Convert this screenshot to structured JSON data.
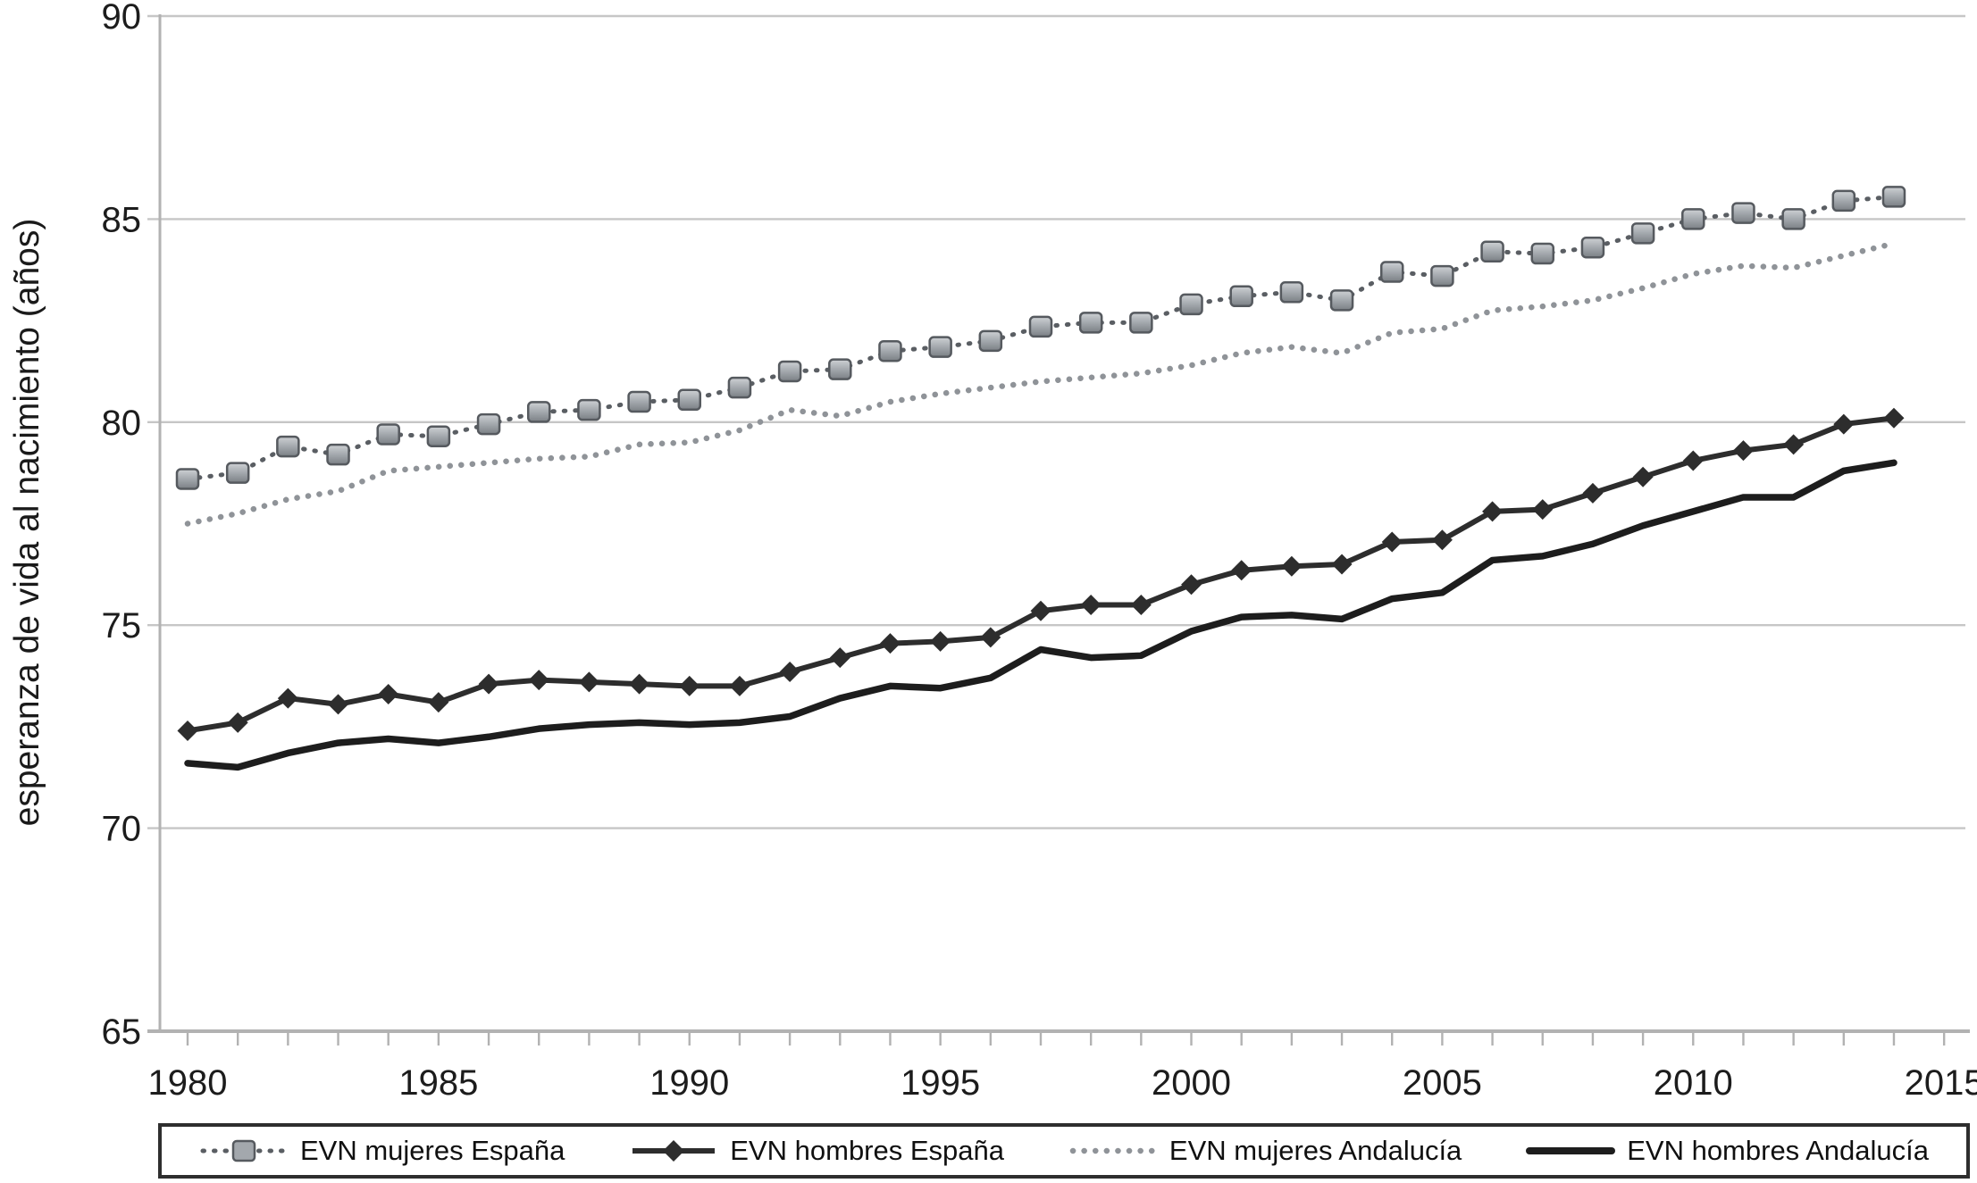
{
  "y_axis": {
    "title": "esperanza de vida al nacimiento (años)",
    "tick_labels": [
      "90",
      "85",
      "80",
      "75",
      "70",
      "65"
    ],
    "ticks": [
      90,
      85,
      80,
      75,
      70,
      65
    ]
  },
  "x_axis": {
    "tick_labels": [
      "1980",
      "1985",
      "1990",
      "1995",
      "2000",
      "2005",
      "2010",
      "2015"
    ],
    "ticks": [
      1980,
      1985,
      1990,
      1995,
      2000,
      2005,
      2010,
      2015
    ]
  },
  "colors": {
    "grid": "#c6c6c6",
    "axis": "#b2b2b2",
    "square_marker_fill": "#a3a8ad",
    "square_marker_border": "#565a5f",
    "squares_connector": "#5a5e63",
    "hombres_espana_line": "#2d2d2d",
    "mujeres_andalucia_dots": "#8f9398",
    "hombres_andalucia_line": "#1d1d1d",
    "label_text": "#1c1c1c",
    "legend_border": "#2e2e2e"
  },
  "chart_data": {
    "type": "line",
    "title": "",
    "xlabel": "",
    "ylabel": "esperanza de vida al nacimiento (años)",
    "ylim": [
      65,
      90
    ],
    "xlim": [
      1979.3,
      2015.7
    ],
    "grid": true,
    "legend_position": "bottom",
    "x": [
      1980,
      1981,
      1982,
      1983,
      1984,
      1985,
      1986,
      1987,
      1988,
      1989,
      1990,
      1991,
      1992,
      1993,
      1994,
      1995,
      1996,
      1997,
      1998,
      1999,
      2000,
      2001,
      2002,
      2003,
      2004,
      2005,
      2006,
      2007,
      2008,
      2009,
      2010,
      2011,
      2012,
      2013,
      2014
    ],
    "series": [
      {
        "name": "EVN mujeres España",
        "marker": "square",
        "line_style": "dotted",
        "values": [
          78.6,
          78.75,
          79.4,
          79.2,
          79.7,
          79.65,
          79.95,
          80.25,
          80.3,
          80.5,
          80.55,
          80.85,
          81.25,
          81.3,
          81.75,
          81.85,
          82.0,
          82.35,
          82.45,
          82.45,
          82.9,
          83.1,
          83.2,
          83.0,
          83.7,
          83.6,
          84.2,
          84.15,
          84.3,
          84.65,
          85.0,
          85.15,
          85.0,
          85.45,
          85.55
        ]
      },
      {
        "name": "EVN hombres España",
        "marker": "diamond",
        "line_style": "solid",
        "values": [
          72.4,
          72.6,
          73.2,
          73.05,
          73.3,
          73.1,
          73.55,
          73.65,
          73.6,
          73.55,
          73.5,
          73.5,
          73.85,
          74.2,
          74.55,
          74.6,
          74.7,
          75.35,
          75.5,
          75.5,
          76.0,
          76.35,
          76.45,
          76.5,
          77.05,
          77.1,
          77.8,
          77.85,
          78.25,
          78.65,
          79.05,
          79.3,
          79.45,
          79.95,
          80.1
        ]
      },
      {
        "name": "EVN mujeres Andalucía",
        "marker": "none",
        "line_style": "dotted",
        "values": [
          77.5,
          77.75,
          78.1,
          78.3,
          78.8,
          78.9,
          79.0,
          79.1,
          79.15,
          79.45,
          79.5,
          79.8,
          80.3,
          80.15,
          80.5,
          80.7,
          80.85,
          81.0,
          81.1,
          81.2,
          81.4,
          81.7,
          81.85,
          81.7,
          82.2,
          82.3,
          82.75,
          82.85,
          83.0,
          83.3,
          83.65,
          83.85,
          83.8,
          84.1,
          84.4
        ]
      },
      {
        "name": "EVN hombres Andalucía",
        "marker": "none",
        "line_style": "solid-thick",
        "values": [
          71.6,
          71.5,
          71.85,
          72.1,
          72.2,
          72.1,
          72.25,
          72.45,
          72.55,
          72.6,
          72.55,
          72.6,
          72.75,
          73.2,
          73.5,
          73.45,
          73.7,
          74.4,
          74.2,
          74.25,
          74.85,
          75.2,
          75.25,
          75.15,
          75.65,
          75.8,
          76.6,
          76.7,
          77.0,
          77.45,
          77.8,
          78.15,
          78.15,
          78.8,
          79.0
        ]
      }
    ]
  }
}
